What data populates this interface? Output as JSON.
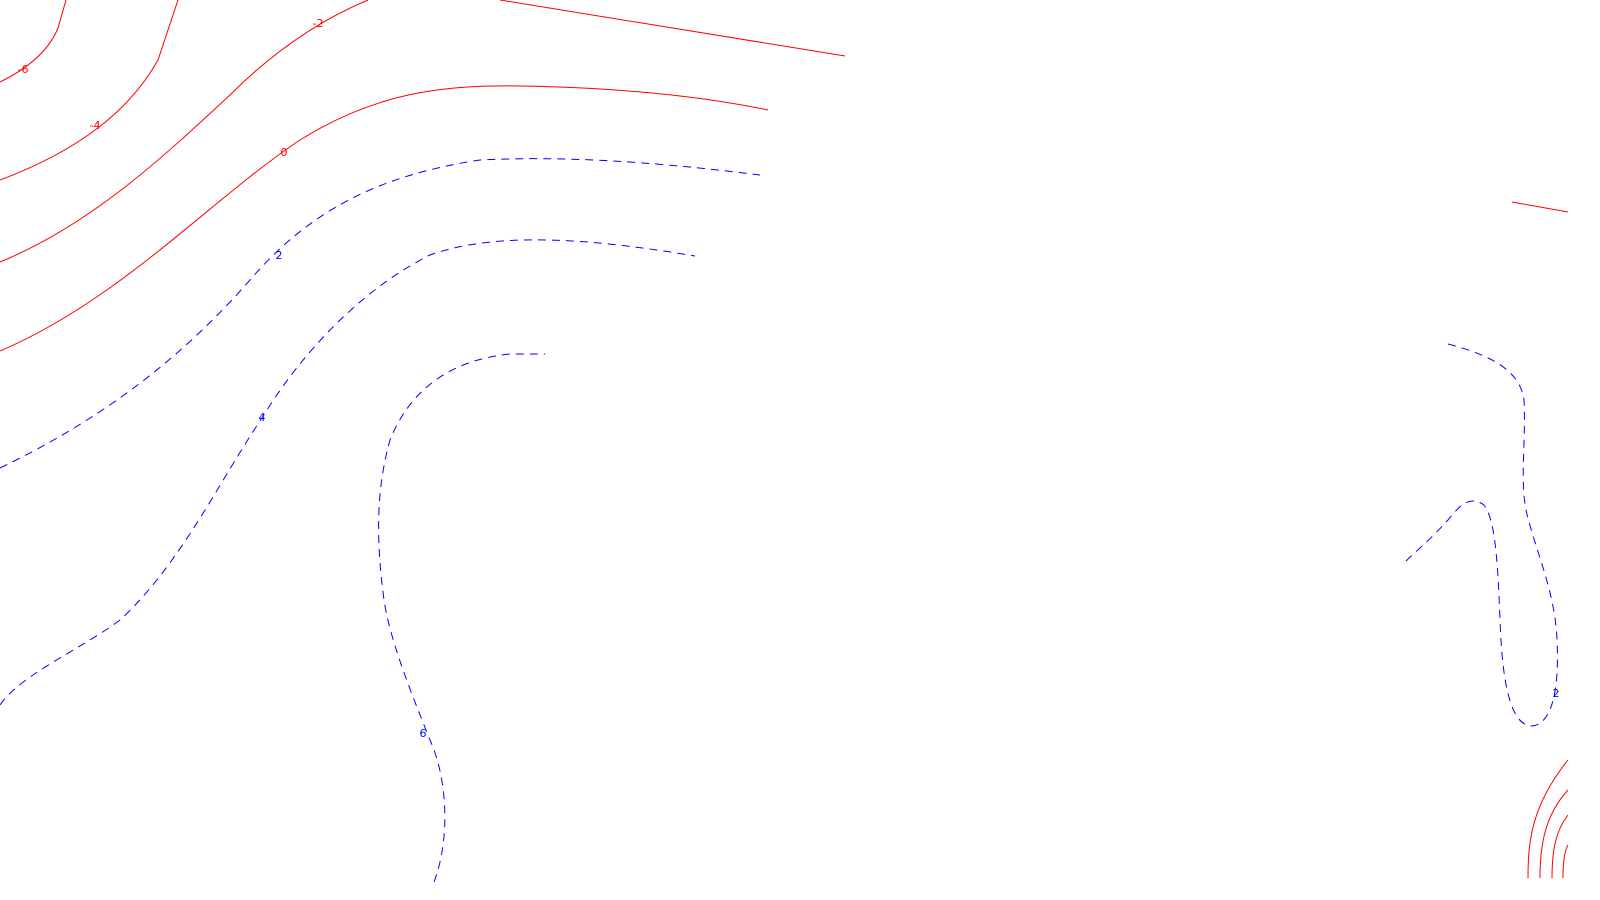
{
  "colors": {
    "background": "#ffffff",
    "negative_and_zero": "#ff0000",
    "positive": "#0000ff"
  },
  "contours": {
    "labels": {
      "neg6": "-6",
      "neg4": "-4",
      "neg2": "-2",
      "zero": "0",
      "pos2_upper": "2",
      "pos4": "4",
      "pos6": "6",
      "pos2_right": "2"
    }
  }
}
